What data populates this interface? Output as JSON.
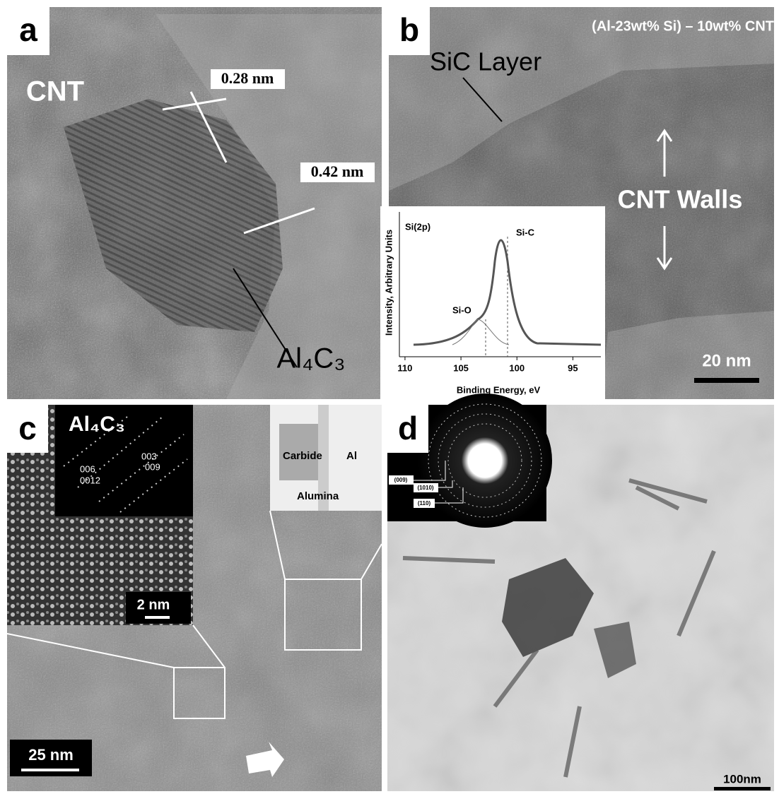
{
  "panels": {
    "a": {
      "label": "a",
      "cnt": "CNT",
      "spacing_1": "0.28 nm",
      "spacing_2": "0.42 nm",
      "phase": "Al₄C₃"
    },
    "b": {
      "label": "b",
      "sample": "(Al-23wt% Si) – 10wt% CNT",
      "sic_layer": "SiC Layer",
      "cnt_walls": "CNT Walls",
      "scale": "20 nm",
      "inset": {
        "title": "Si(2p)",
        "peak_1": "Si-C",
        "peak_2": "Si-O",
        "y_label": "Intensity, Arbitrary Units",
        "x_label": "Binding Energy, eV",
        "xlim": [
          110.5,
          92.5
        ],
        "xticks": [
          110,
          105,
          100,
          95
        ]
      }
    },
    "c": {
      "label": "c",
      "diffraction_title": "Al₄C₃",
      "spot_1": "003",
      "spot_2": "009",
      "spot_3": "006",
      "spot_4": "0012",
      "inset_scale": "2 nm",
      "carbide": "Carbide",
      "al": "Al",
      "alumina": "Alumina",
      "scale": "25 nm"
    },
    "d": {
      "label": "d",
      "ring_1": "(009)",
      "ring_2": "(1010)",
      "ring_3": "(110)",
      "scale": "100nm"
    }
  }
}
